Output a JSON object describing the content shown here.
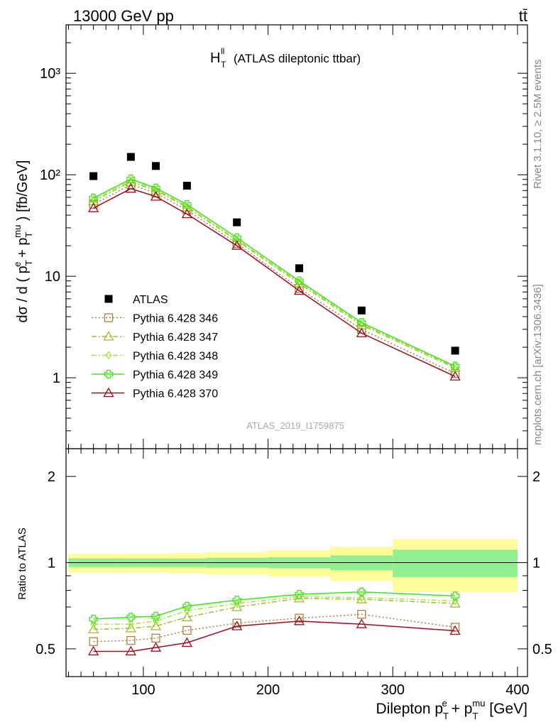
{
  "header": {
    "energy_label": "13000 GeV pp",
    "process_label": "tt̄"
  },
  "side_labels": {
    "rivet": "Rivet 3.1.10, ≥ 2.5M events",
    "source": "mcplots.cern.ch [arXiv:1306.3436]"
  },
  "analysis_id": "ATLAS_2019_I1759875",
  "chart_data": [
    {
      "type": "line",
      "panel": "main",
      "title": "H_T^ll (ATLAS dileptonic ttbar)",
      "title_main": "H",
      "title_sup": "ll",
      "title_sub": "T",
      "title_rest": "(ATLAS dileptonic ttbar)",
      "ylabel": "dσ / d ( p_T^e + p_T^mu ) [fb/GeV]",
      "yscale": "log",
      "ylim": [
        0.2,
        3000
      ],
      "xlim": [
        38,
        408
      ],
      "y_ticks": [
        {
          "v": 1,
          "label": "1"
        },
        {
          "v": 10,
          "label": "10"
        },
        {
          "v": 100,
          "label": "10²"
        },
        {
          "v": 1000,
          "label": "10³"
        }
      ],
      "legend_position": "lower-left",
      "x": [
        60,
        90,
        110,
        135,
        175,
        225,
        275,
        350
      ],
      "series": [
        {
          "name": "ATLAS",
          "color": "#000000",
          "marker": "filled-square",
          "style": "none",
          "values": [
            97,
            150,
            122,
            78,
            34,
            12,
            4.6,
            1.85
          ]
        },
        {
          "name": "Pythia 6.428 346",
          "color": "#b08040",
          "marker": "open-square",
          "style": "dotted",
          "values": [
            51,
            80,
            66,
            45,
            21,
            7.6,
            3.0,
            1.1
          ]
        },
        {
          "name": "Pythia 6.428 347",
          "color": "#a8b832",
          "marker": "open-triangle",
          "style": "dashdot",
          "values": [
            55,
            85,
            70,
            48,
            22.5,
            8.5,
            3.3,
            1.25
          ]
        },
        {
          "name": "Pythia 6.428 348",
          "color": "#a0e83c",
          "marker": "open-diamond",
          "style": "dashdot",
          "values": [
            57,
            88,
            72,
            49,
            23,
            8.8,
            3.4,
            1.27
          ]
        },
        {
          "name": "Pythia 6.428 349",
          "color": "#3fe61a",
          "marker": "open-cross",
          "style": "solid",
          "values": [
            59,
            91,
            74,
            51,
            24,
            9.0,
            3.5,
            1.3
          ]
        },
        {
          "name": "Pythia 6.428 370",
          "color": "#9b0e1e",
          "marker": "open-triangle",
          "style": "solid",
          "values": [
            47,
            73,
            61,
            41,
            20,
            7.2,
            2.75,
            1.03
          ]
        }
      ]
    },
    {
      "type": "line",
      "panel": "ratio",
      "ylabel": "Ratio to ATLAS",
      "xlabel": "Dilepton p_T^e + p_T^mu [GeV]",
      "yscale": "log",
      "ylim": [
        0.4,
        2.5
      ],
      "xlim": [
        38,
        408
      ],
      "y_ticks": [
        {
          "v": 0.5,
          "label": "0.5"
        },
        {
          "v": 1,
          "label": "1"
        },
        {
          "v": 2,
          "label": "2"
        }
      ],
      "x_ticks": [
        {
          "v": 100,
          "label": "100"
        },
        {
          "v": 200,
          "label": "200"
        },
        {
          "v": 300,
          "label": "300"
        },
        {
          "v": 400,
          "label": "400"
        }
      ],
      "bins": [
        [
          40,
          80
        ],
        [
          80,
          100
        ],
        [
          100,
          120
        ],
        [
          120,
          150
        ],
        [
          150,
          200
        ],
        [
          200,
          250
        ],
        [
          250,
          300
        ],
        [
          300,
          400
        ]
      ],
      "stat_band": [
        0.035,
        0.035,
        0.035,
        0.035,
        0.04,
        0.045,
        0.06,
        0.11
      ],
      "total_band": [
        0.075,
        0.075,
        0.075,
        0.08,
        0.09,
        0.105,
        0.135,
        0.21
      ],
      "band_colors": {
        "stat": "#90f090",
        "total": "#fffc9a"
      },
      "x": [
        60,
        90,
        110,
        135,
        175,
        225,
        275,
        350
      ],
      "series": [
        {
          "name": "Pythia 6.428 346",
          "color": "#b08040",
          "marker": "open-square",
          "style": "dotted",
          "values": [
            0.53,
            0.535,
            0.545,
            0.58,
            0.615,
            0.64,
            0.66,
            0.595
          ]
        },
        {
          "name": "Pythia 6.428 347",
          "color": "#a8b832",
          "marker": "open-triangle",
          "style": "dashdot",
          "values": [
            0.585,
            0.59,
            0.6,
            0.645,
            0.7,
            0.75,
            0.745,
            0.72
          ]
        },
        {
          "name": "Pythia 6.428 348",
          "color": "#a0e83c",
          "marker": "open-diamond",
          "style": "dashdot",
          "values": [
            0.61,
            0.61,
            0.625,
            0.68,
            0.72,
            0.76,
            0.755,
            0.735
          ]
        },
        {
          "name": "Pythia 6.428 349",
          "color": "#3fe61a",
          "marker": "open-cross",
          "style": "solid",
          "values": [
            0.635,
            0.645,
            0.65,
            0.705,
            0.74,
            0.775,
            0.79,
            0.765
          ]
        },
        {
          "name": "Pythia 6.428 370",
          "color": "#9b0e1e",
          "marker": "open-triangle",
          "style": "solid",
          "values": [
            0.49,
            0.49,
            0.505,
            0.525,
            0.6,
            0.625,
            0.61,
            0.578
          ]
        }
      ]
    }
  ]
}
